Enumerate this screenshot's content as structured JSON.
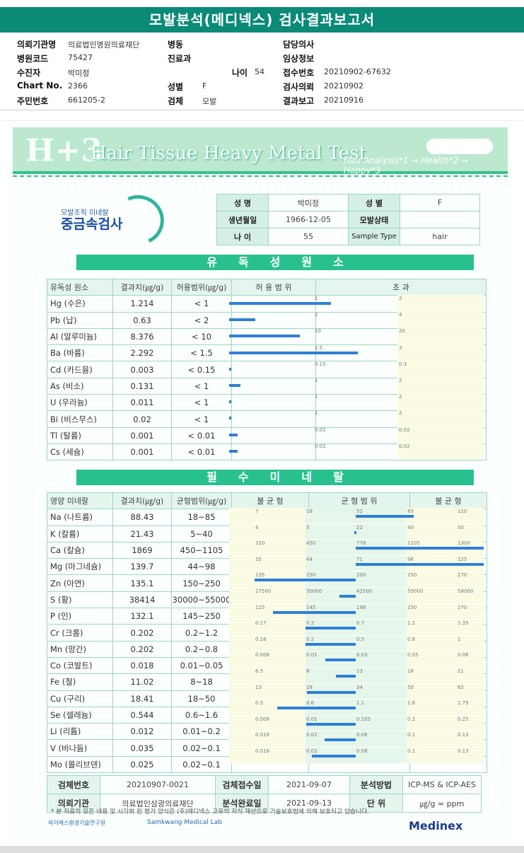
{
  "title": "모발분석(메디넥스) 검사결과보고서",
  "info": {
    "left": [
      {
        "label": "의뢰기관명",
        "value": "의료법인명원의료재단"
      },
      {
        "label": "병원코드",
        "value": "75427"
      },
      {
        "label": "수진자",
        "value": "박미정"
      },
      {
        "label": "Chart No.",
        "value": "2366"
      },
      {
        "label": "주민번호",
        "value": "661205-2"
      }
    ],
    "middle": [
      {
        "label": "병동",
        "value": ""
      },
      {
        "label": "진료과",
        "value": ""
      },
      {
        "label": "성별",
        "value": "F"
      },
      {
        "label": "검체",
        "value": "모발"
      }
    ],
    "age_label": "나이",
    "age_value": "54",
    "right": [
      {
        "label": "담당의사",
        "value": ""
      },
      {
        "label": "임상정보",
        "value": ""
      },
      {
        "label": "접수번호",
        "value": "20210902-67632"
      },
      {
        "label": "검사의뢰",
        "value": "20210902"
      },
      {
        "label": "결과보고",
        "value": "20210916"
      }
    ]
  },
  "banner": {
    "logo": "H+3",
    "title": "Hair Tissue Heavy Metal Test",
    "subtitle": "Hair Analysis*1 → Health*2 → Happy*3"
  },
  "kicker": {
    "small": "모발조직 미네랄",
    "big": "중금속검사"
  },
  "patient": {
    "name_label": "성 명",
    "name": "박미정",
    "sex_label": "성 별",
    "sex": "F",
    "dob_label": "생년월일",
    "dob": "1966-12-05",
    "hair_label": "모발상태",
    "hair": "",
    "age_label": "나 이",
    "age": "55",
    "sample_label": "Sample Type",
    "sample": "hair"
  },
  "toxic": {
    "section": "유독성원소",
    "headers": [
      "유독성 원소",
      "결과치(㎍/g)",
      "허용범위(㎍/g)",
      "허 용 범 위",
      "초 과"
    ],
    "rows": [
      {
        "name": "Hg (수은)",
        "result": "1.214",
        "range": "< 1",
        "t1": "1",
        "t2": "2",
        "value": 1.214,
        "limit": 1
      },
      {
        "name": "Pb (납)",
        "result": "0.63",
        "range": "< 2",
        "t1": "2",
        "t2": "4",
        "value": 0.63,
        "limit": 2
      },
      {
        "name": "Al (알루미늄)",
        "result": "8.376",
        "range": "< 10",
        "t1": "10",
        "t2": "20",
        "value": 8.376,
        "limit": 10
      },
      {
        "name": "Ba (바륨)",
        "result": "2.292",
        "range": "< 1.5",
        "t1": "1.5",
        "t2": "3",
        "value": 2.292,
        "limit": 1.5
      },
      {
        "name": "Cd (카드뮴)",
        "result": "0.003",
        "range": "< 0.15",
        "t1": "0.15",
        "t2": "0.3",
        "value": 0.003,
        "limit": 0.15
      },
      {
        "name": "As (비소)",
        "result": "0.131",
        "range": "< 1",
        "t1": "1",
        "t2": "2",
        "value": 0.131,
        "limit": 1
      },
      {
        "name": "U (우라늄)",
        "result": "0.011",
        "range": "< 1",
        "t1": "1",
        "t2": "2",
        "value": 0.011,
        "limit": 1
      },
      {
        "name": "Bi (비스무스)",
        "result": "0.02",
        "range": "< 1",
        "t1": "1",
        "t2": "2",
        "value": 0.02,
        "limit": 1
      },
      {
        "name": "Tl (탈륨)",
        "result": "0.001",
        "range": "< 0.01",
        "t1": "0.01",
        "t2": "0.02",
        "value": 0.001,
        "limit": 0.01
      },
      {
        "name": "Cs (세슘)",
        "result": "0.001",
        "range": "< 0.01",
        "t1": "0.01",
        "t2": "0.02",
        "value": 0.001,
        "limit": 0.01
      }
    ]
  },
  "mineral": {
    "section": "필수미네랄",
    "headers": [
      "영양 미네랄",
      "결과치(㎍/g)",
      "균형범위(㎍/g)",
      "불 균 형",
      "균 형 범 위",
      "불 균 형"
    ],
    "rows": [
      {
        "name": "Na (나트륨)",
        "result": "88.43",
        "range": "18~85",
        "ticks": [
          "7",
          "18",
          "52",
          "85",
          "110"
        ],
        "value": 88.43
      },
      {
        "name": "K (칼륨)",
        "result": "21.43",
        "range": "5~40",
        "ticks": [
          "4",
          "5",
          "22",
          "40",
          "50"
        ],
        "value": 21.43
      },
      {
        "name": "Ca (칼슘)",
        "result": "1869",
        "range": "450~1105",
        "ticks": [
          "320",
          "450",
          "778",
          "1105",
          "1300"
        ],
        "value": 1869
      },
      {
        "name": "Mg (마그네슘)",
        "result": "139.7",
        "range": "44~98",
        "ticks": [
          "35",
          "44",
          "71",
          "98",
          "125"
        ],
        "value": 139.7
      },
      {
        "name": "Zn (아연)",
        "result": "135.1",
        "range": "150~250",
        "ticks": [
          "135",
          "150",
          "200",
          "250",
          "270"
        ],
        "value": 135.1
      },
      {
        "name": "S (황)",
        "result": "38414",
        "range": "30000~55000",
        "ticks": [
          "27500",
          "30000",
          "42500",
          "55000",
          "58000"
        ],
        "value": 38414
      },
      {
        "name": "P (인)",
        "result": "132.1",
        "range": "145~250",
        "ticks": [
          "125",
          "145",
          "198",
          "250",
          "270"
        ],
        "value": 132.1
      },
      {
        "name": "Cr (크롬)",
        "result": "0.202",
        "range": "0.2~1.2",
        "ticks": [
          "0.17",
          "0.2",
          "0.7",
          "1.2",
          "1.35"
        ],
        "value": 0.202
      },
      {
        "name": "Mn (망간)",
        "result": "0.202",
        "range": "0.2~0.8",
        "ticks": [
          "0.16",
          "0.2",
          "0.5",
          "0.8",
          "1"
        ],
        "value": 0.202
      },
      {
        "name": "Co (코발트)",
        "result": "0.018",
        "range": "0.01~0.05",
        "ticks": [
          "0.008",
          "0.01",
          "0.03",
          "0.05",
          "0.06"
        ],
        "value": 0.018
      },
      {
        "name": "Fe (철)",
        "result": "11.02",
        "range": "8~18",
        "ticks": [
          "6.5",
          "8",
          "13",
          "18",
          "21"
        ],
        "value": 11.02
      },
      {
        "name": "Cu (구리)",
        "result": "18.41",
        "range": "18~50",
        "ticks": [
          "13",
          "18",
          "34",
          "50",
          "65"
        ],
        "value": 18.41
      },
      {
        "name": "Se (셀레늄)",
        "result": "0.544",
        "range": "0.6~1.6",
        "ticks": [
          "0.5",
          "0.6",
          "1.1",
          "1.6",
          "1.75"
        ],
        "value": 0.544
      },
      {
        "name": "Li (리튬)",
        "result": "0.012",
        "range": "0.01~0.2",
        "ticks": [
          "0.008",
          "0.01",
          "0.105",
          "0.2",
          "0.25"
        ],
        "value": 0.012
      },
      {
        "name": "V (바나듐)",
        "result": "0.035",
        "range": "0.02~0.1",
        "ticks": [
          "0.016",
          "0.02",
          "0.06",
          "0.1",
          "0.13"
        ],
        "value": 0.035
      },
      {
        "name": "Mo (몰리브덴)",
        "result": "0.025",
        "range": "0.02~0.1",
        "ticks": [
          "0.016",
          "0.02",
          "0.06",
          "0.1",
          "0.13"
        ],
        "value": 0.025
      }
    ]
  },
  "bottom": {
    "specimen_label": "검체번호",
    "specimen": "20210907-0021",
    "received_label": "검체접수일",
    "received": "2021-09-07",
    "method_label": "분석방법",
    "method": "ICP-MS & ICP-AES",
    "agency_label": "의뢰기관",
    "agency": "의료법인삼광의료재단",
    "done_label": "분석완료일",
    "done": "2021-09-13",
    "unit_label": "단 위",
    "unit": "㎍/g = ppm"
  },
  "footnote": "* 본 자료의 모든 내용 및 시각화 된 평가 양식은 (주)메디넥스 고유의 지식 재산으로 기술보호법에 의해 보호되고 있습니다.",
  "footer": {
    "org1": "와이에스환경기술연구원",
    "org2": "Samkwang Medical Lab",
    "brand": "Medinex"
  }
}
